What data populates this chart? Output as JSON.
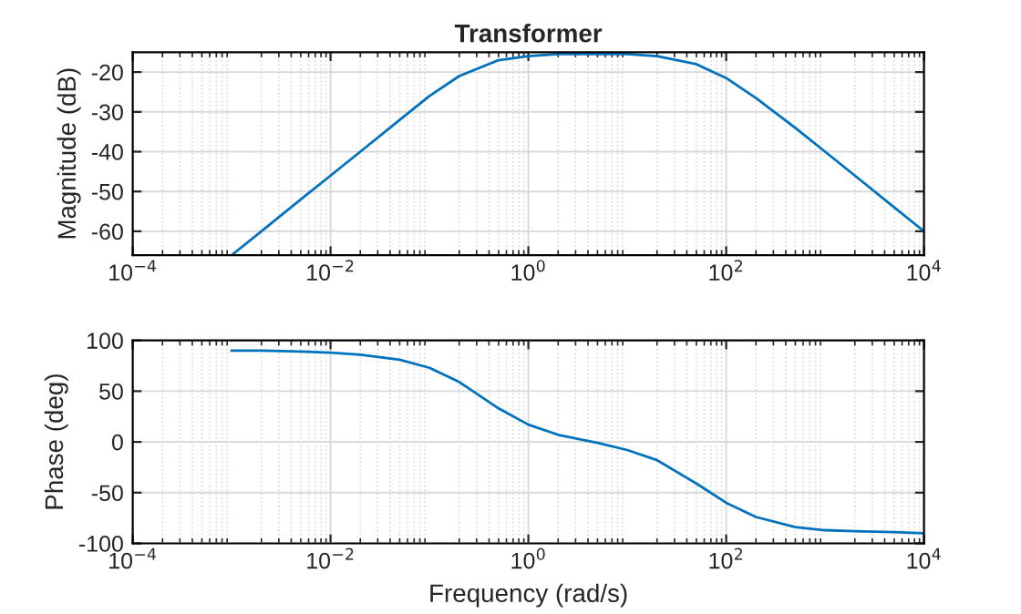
{
  "chart_data": [
    {
      "type": "line",
      "title": "Transformer",
      "ylabel": "Magnitude (dB)",
      "log": "x",
      "grid": true,
      "xlim": [
        0.0001,
        10000
      ],
      "xticks": [
        {
          "value": 0.0001,
          "label": "10$^{−4}$"
        },
        {
          "value": 0.01,
          "label": "10$^{−2}$"
        },
        {
          "value": 1,
          "label": "10$^{0}$"
        },
        {
          "value": 100,
          "label": "10$^{2}$"
        },
        {
          "value": 10000,
          "label": "10$^{4}$"
        }
      ],
      "ylim": [
        -66,
        -15
      ],
      "yticks": [
        -60,
        -50,
        -40,
        -30,
        -20
      ],
      "x": [
        0.001,
        0.002,
        0.005,
        0.01,
        0.02,
        0.05,
        0.1,
        0.2,
        0.5,
        1,
        2,
        5,
        10,
        20,
        50,
        100,
        200,
        500,
        1000,
        2000,
        5000,
        10000
      ],
      "series": [
        {
          "color": "#0072bd",
          "values": [
            -66,
            -60,
            -52,
            -46,
            -40,
            -32,
            -26,
            -21,
            -17,
            -16,
            -15.5,
            -15.5,
            -15.5,
            -16,
            -18,
            -21.5,
            -26.5,
            -34,
            -40,
            -46,
            -54,
            -60
          ]
        }
      ]
    },
    {
      "type": "line",
      "xlabel": "Frequency (rad/s)",
      "ylabel": "Phase (deg)",
      "log": "x",
      "grid": true,
      "xlim": [
        0.0001,
        10000
      ],
      "xticks": [
        {
          "value": 0.0001,
          "label": "10$^{−4}$"
        },
        {
          "value": 0.01,
          "label": "10$^{−2}$"
        },
        {
          "value": 1,
          "label": "10$^{0}$"
        },
        {
          "value": 100,
          "label": "10$^{2}$"
        },
        {
          "value": 10000,
          "label": "10$^{4}$"
        }
      ],
      "ylim": [
        -100,
        100
      ],
      "yticks": [
        -100,
        -50,
        0,
        50,
        100
      ],
      "x": [
        0.001,
        0.002,
        0.005,
        0.01,
        0.02,
        0.05,
        0.1,
        0.2,
        0.5,
        1,
        2,
        5,
        10,
        20,
        50,
        100,
        200,
        500,
        1000,
        2000,
        5000,
        10000
      ],
      "series": [
        {
          "color": "#0072bd",
          "values": [
            90,
            90,
            89,
            88,
            86,
            81,
            73,
            59,
            33,
            17,
            7,
            -1,
            -8,
            -18,
            -41,
            -60,
            -74,
            -84,
            -87,
            -88,
            -89,
            -90
          ]
        }
      ]
    }
  ]
}
